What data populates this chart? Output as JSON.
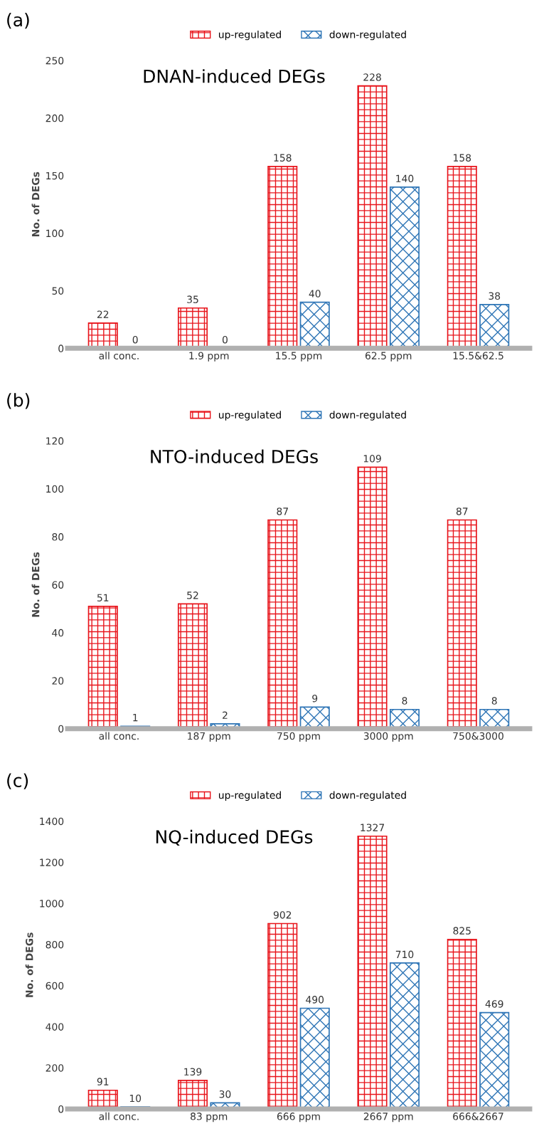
{
  "chart_data": [
    {
      "type": "bar",
      "title": "DNAN-induced DEGs",
      "ylabel": "No. of DEGs",
      "annotations": [
        "(a)"
      ],
      "categories": [
        "all conc.",
        "1.9 ppm",
        "15.5 ppm",
        "62.5 ppm",
        "15.5&62.5"
      ],
      "series": [
        {
          "name": "up-regulated",
          "color": "#e8141b",
          "values": [
            22,
            35,
            158,
            228,
            158
          ]
        },
        {
          "name": "down-regulated",
          "color": "#2e75b6",
          "values": [
            0,
            0,
            40,
            140,
            38
          ]
        }
      ],
      "ylim": [
        0,
        250
      ],
      "yticks": [
        0,
        50,
        100,
        150,
        200,
        250
      ],
      "data_labels": true,
      "legend": "top",
      "grid": false
    },
    {
      "type": "bar",
      "title": "NTO-induced DEGs",
      "ylabel": "No. of DEGs",
      "annotations": [
        "(b)"
      ],
      "categories": [
        "all conc.",
        "187 ppm",
        "750 ppm",
        "3000 ppm",
        "750&3000"
      ],
      "series": [
        {
          "name": "up-regulated",
          "color": "#e8141b",
          "values": [
            51,
            52,
            87,
            109,
            87
          ]
        },
        {
          "name": "down-regulated",
          "color": "#2e75b6",
          "values": [
            1,
            2,
            9,
            8,
            8
          ]
        }
      ],
      "ylim": [
        0,
        120
      ],
      "yticks": [
        0,
        20,
        40,
        60,
        80,
        100,
        120
      ],
      "data_labels": true,
      "legend": "top",
      "grid": false
    },
    {
      "type": "bar",
      "title": "NQ-induced DEGs",
      "ylabel": "No. of DEGs",
      "annotations": [
        "(c)"
      ],
      "categories": [
        "all conc.",
        "83 ppm",
        "666 ppm",
        "2667 ppm",
        "666&2667"
      ],
      "series": [
        {
          "name": "up-regulated",
          "color": "#e8141b",
          "values": [
            91,
            139,
            902,
            1327,
            825
          ]
        },
        {
          "name": "down-regulated",
          "color": "#2e75b6",
          "values": [
            10,
            30,
            490,
            710,
            469
          ]
        }
      ],
      "ylim": [
        0,
        1400
      ],
      "yticks": [
        0,
        200,
        400,
        600,
        800,
        1000,
        1200,
        1400
      ],
      "data_labels": true,
      "legend": "top",
      "grid": false
    }
  ]
}
